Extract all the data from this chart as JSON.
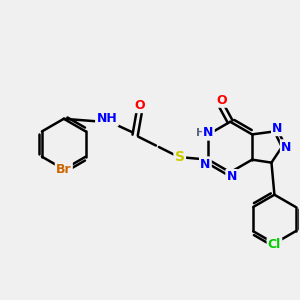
{
  "bg_color": "#f0f0f0",
  "bond_color": "#000000",
  "colors": {
    "N": "#0000ff",
    "O": "#ff0000",
    "S": "#cccc00",
    "Br": "#cc6600",
    "Cl": "#00cc00",
    "H": "#666688",
    "C": "#000000"
  },
  "title": "",
  "figsize": [
    3.0,
    3.0
  ],
  "dpi": 100
}
